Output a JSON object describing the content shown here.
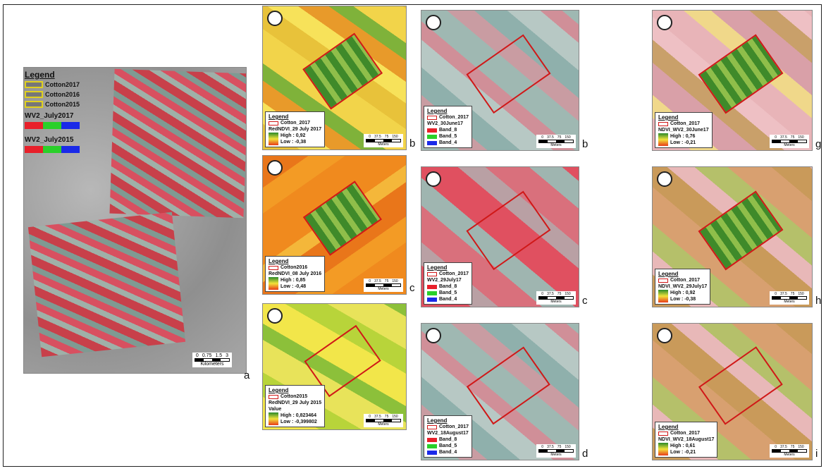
{
  "panel_a": {
    "legend_title": "Legend",
    "boundaries": [
      "Cotton2017",
      "Cotton2016",
      "Cotton2015"
    ],
    "composites": [
      "WV2_July2017",
      "WV2_July2015"
    ],
    "scale_labels": [
      "0",
      "0.75",
      "1.5",
      "3"
    ],
    "scale_unit": "Kilometers",
    "label": "a"
  },
  "red_ndvi_panels": [
    {
      "legend_title": "Legend",
      "boundary": "Cotton_2017",
      "layer": "RedNDVI_29 July 2017",
      "high": "High : 0,92",
      "low": "Low : -0,38",
      "scale_labels": [
        "0",
        "37.5",
        "75",
        "150"
      ],
      "scale_unit": "Meters",
      "label": "b"
    },
    {
      "legend_title": "Legend",
      "boundary": "Cotton2016",
      "layer": "RedNDVI_08 July 2016",
      "high": "High : 0,85",
      "low": "Low : -0,48",
      "scale_labels": [
        "0",
        "37.5",
        "75",
        "150"
      ],
      "scale_unit": "Meters",
      "label": "c"
    },
    {
      "legend_title": "Legend",
      "boundary": "Cotton2015",
      "layer": "RedNDVI_29 July 2015",
      "value_heading": "Value",
      "high": "High : 0,823464",
      "low": "Low : -0,399802",
      "scale_labels": [
        "0",
        "37.5",
        "75",
        "150"
      ],
      "scale_unit": "Meters"
    }
  ],
  "false_color_panels": [
    {
      "legend_title": "Legend",
      "boundary": "Cotton_2017",
      "layer": "WV2_30June17",
      "bands": [
        "Band_8",
        "Band_5",
        "Band_4"
      ],
      "scale_labels": [
        "0",
        "37.5",
        "75",
        "150"
      ],
      "scale_unit": "Meters",
      "label": "b"
    },
    {
      "legend_title": "Legend",
      "boundary": "Cotton_2017",
      "layer": "WV2_29July17",
      "bands": [
        "Band_8",
        "Band_5",
        "Band_4"
      ],
      "scale_labels": [
        "0",
        "37.5",
        "75",
        "150"
      ],
      "scale_unit": "Meters",
      "label": "c"
    },
    {
      "legend_title": "Legend",
      "boundary": "Cotton_2017",
      "layer": "WV2_18August17",
      "bands": [
        "Band_8",
        "Band_5",
        "Band_4"
      ],
      "scale_labels": [
        "0",
        "37.5",
        "75",
        "150"
      ],
      "scale_unit": "Meters",
      "label": "d"
    }
  ],
  "wv2_ndvi_panels": [
    {
      "legend_title": "Legend",
      "boundary": "Cotton_2017",
      "layer": "NDVI_WV2_30June17",
      "high": "High : 0,76",
      "low": "Low : -0,21",
      "scale_labels": [
        "0",
        "37.5",
        "75",
        "150"
      ],
      "scale_unit": "Meters",
      "label": "g"
    },
    {
      "legend_title": "Legend",
      "boundary": "Cotton_2017",
      "layer": "NDVI_WV2_29July17",
      "high": "High : 0,92",
      "low": "Low : -0,38",
      "scale_labels": [
        "0",
        "37.5",
        "75",
        "150"
      ],
      "scale_unit": "Meters",
      "label": "h"
    },
    {
      "legend_title": "Legend",
      "boundary": "Cotton_2017",
      "layer": "NDVI_WV2_18August17",
      "high": "High : 0,61",
      "low": "Low : -0,21",
      "scale_labels": [
        "0",
        "37.5",
        "75",
        "150"
      ],
      "scale_unit": "Meters",
      "label": "i"
    }
  ]
}
